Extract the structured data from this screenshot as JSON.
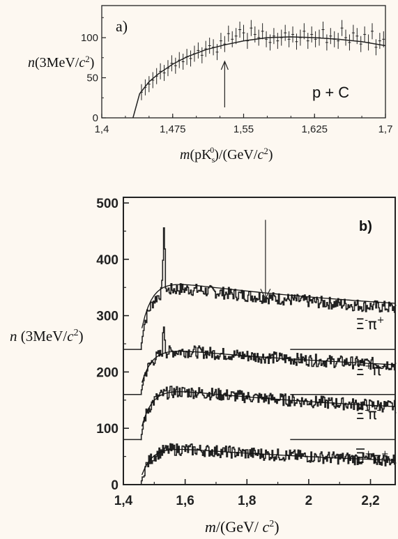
{
  "chart_data": [
    {
      "type": "scatter",
      "panel_label": "a)",
      "annotation": "p + C",
      "ylabel": {
        "pre": "n",
        "mid": "(3MeV/",
        "post": ")"
      },
      "xlabel": {
        "pre": "m",
        "mid": "(pK",
        "sub": "s",
        "sup": "0",
        "tail": ")/(GeV/",
        "post": ")"
      },
      "xlim": [
        1.4,
        1.7
      ],
      "ylim": [
        0,
        140
      ],
      "x_ticks": [
        "1,4",
        "1,475",
        "1,55",
        "1,625",
        "1,7"
      ],
      "x_tick_values": [
        1.4,
        1.475,
        1.55,
        1.625,
        1.7
      ],
      "y_ticks": [
        "0",
        "50",
        "100"
      ],
      "y_tick_values": [
        0,
        50,
        100
      ],
      "arrow_x": 1.53,
      "fit_curve": {
        "x": [
          1.433,
          1.44,
          1.45,
          1.46,
          1.475,
          1.49,
          1.51,
          1.53,
          1.55,
          1.575,
          1.6,
          1.625,
          1.65,
          1.675,
          1.7
        ],
        "y": [
          0,
          30,
          45,
          55,
          67,
          76,
          85,
          91,
          96,
          100,
          101,
          100,
          98,
          95,
          90
        ]
      },
      "points": {
        "x": [
          1.442,
          1.446,
          1.45,
          1.454,
          1.458,
          1.462,
          1.466,
          1.47,
          1.474,
          1.478,
          1.482,
          1.486,
          1.49,
          1.494,
          1.498,
          1.502,
          1.506,
          1.51,
          1.514,
          1.518,
          1.522,
          1.526,
          1.53,
          1.534,
          1.538,
          1.542,
          1.546,
          1.55,
          1.554,
          1.558,
          1.562,
          1.566,
          1.57,
          1.574,
          1.578,
          1.582,
          1.586,
          1.59,
          1.594,
          1.598,
          1.602,
          1.606,
          1.61,
          1.614,
          1.618,
          1.622,
          1.626,
          1.63,
          1.634,
          1.638,
          1.642,
          1.646,
          1.65,
          1.654,
          1.658,
          1.662,
          1.666,
          1.67,
          1.674,
          1.678,
          1.682,
          1.686,
          1.69,
          1.694,
          1.698
        ],
        "y": [
          32,
          38,
          42,
          47,
          52,
          58,
          56,
          62,
          68,
          65,
          72,
          70,
          76,
          74,
          80,
          84,
          78,
          86,
          90,
          88,
          82,
          96,
          92,
          105,
          98,
          102,
          110,
          106,
          96,
          112,
          104,
          100,
          108,
          98,
          94,
          102,
          96,
          100,
          106,
          98,
          104,
          95,
          100,
          108,
          96,
          104,
          98,
          100,
          110,
          94,
          102,
          98,
          96,
          112,
          100,
          94,
          106,
          102,
          92,
          104,
          94,
          108,
          88,
          96,
          98
        ],
        "err": [
          10,
          10,
          10,
          10,
          10,
          10,
          10,
          10,
          10,
          10,
          10,
          10,
          10,
          10,
          10,
          10,
          10,
          10,
          10,
          10,
          10,
          10,
          10,
          10,
          10,
          10,
          10,
          10,
          10,
          10,
          10,
          10,
          10,
          10,
          10,
          10,
          10,
          10,
          10,
          10,
          10,
          10,
          10,
          10,
          10,
          10,
          10,
          10,
          10,
          10,
          10,
          10,
          10,
          10,
          10,
          10,
          10,
          10,
          10,
          10,
          10,
          10,
          10,
          10,
          10
        ]
      }
    },
    {
      "type": "line",
      "panel_label": "b)",
      "ylabel": {
        "pre": "n",
        "mid": " (3MeV/",
        "post": ")"
      },
      "xlabel": {
        "pre": "m",
        "mid": "/(GeV/ ",
        "post": ")"
      },
      "xlim": [
        1.4,
        2.28
      ],
      "ylim": [
        0,
        510
      ],
      "x_ticks": [
        "1,4",
        "1,6",
        "1,8",
        "2",
        "2,2"
      ],
      "x_tick_values": [
        1.4,
        1.6,
        1.8,
        2.0,
        2.2
      ],
      "y_ticks": [
        "0",
        "100",
        "200",
        "300",
        "400",
        "500"
      ],
      "y_tick_values": [
        0,
        100,
        200,
        300,
        400,
        500
      ],
      "arrow_x": 1.86,
      "arrow_y_range": [
        470,
        330
      ],
      "series": [
        {
          "name": "Ξ⁻π⁺",
          "label_main": "Ξ",
          "label_sup1": "-",
          "label_pi": "π",
          "label_sup2": "+",
          "bar": false,
          "baseline": 240,
          "peak_height": 115,
          "peak_x": 1.53,
          "amp": 120,
          "base_line_x": [
            1.4,
            1.46
          ],
          "shelf_x": [
            1.94,
            2.28
          ]
        },
        {
          "name": "Ξ̄⁺π⁻",
          "label_main": "Ξ",
          "label_sup1": "+",
          "label_pi": "π",
          "label_sup2": "-",
          "bar": true,
          "baseline": 160,
          "peak_height": 50,
          "peak_x": 1.53,
          "amp": 86,
          "base_line_x": [
            1.4,
            1.46
          ],
          "shelf_x": [
            1.94,
            2.28
          ]
        },
        {
          "name": "Ξ⁻π⁻",
          "label_main": "Ξ",
          "label_sup1": "-",
          "label_pi": "π",
          "label_sup2": "-",
          "bar": false,
          "baseline": 80,
          "peak_height": 0,
          "peak_x": 1.53,
          "amp": 95,
          "base_line_x": [
            1.4,
            1.46
          ],
          "shelf_x": [
            1.94,
            2.28
          ]
        },
        {
          "name": "Ξ̄⁺π⁺",
          "label_main": "Ξ",
          "label_sup1": "+",
          "label_pi": "π",
          "label_sup2": "+",
          "bar": true,
          "baseline": 0,
          "peak_height": 0,
          "peak_x": 1.53,
          "amp": 70,
          "base_line_x": [
            1.4,
            1.46
          ],
          "shelf_x": [
            1.94,
            2.28
          ]
        }
      ]
    }
  ]
}
